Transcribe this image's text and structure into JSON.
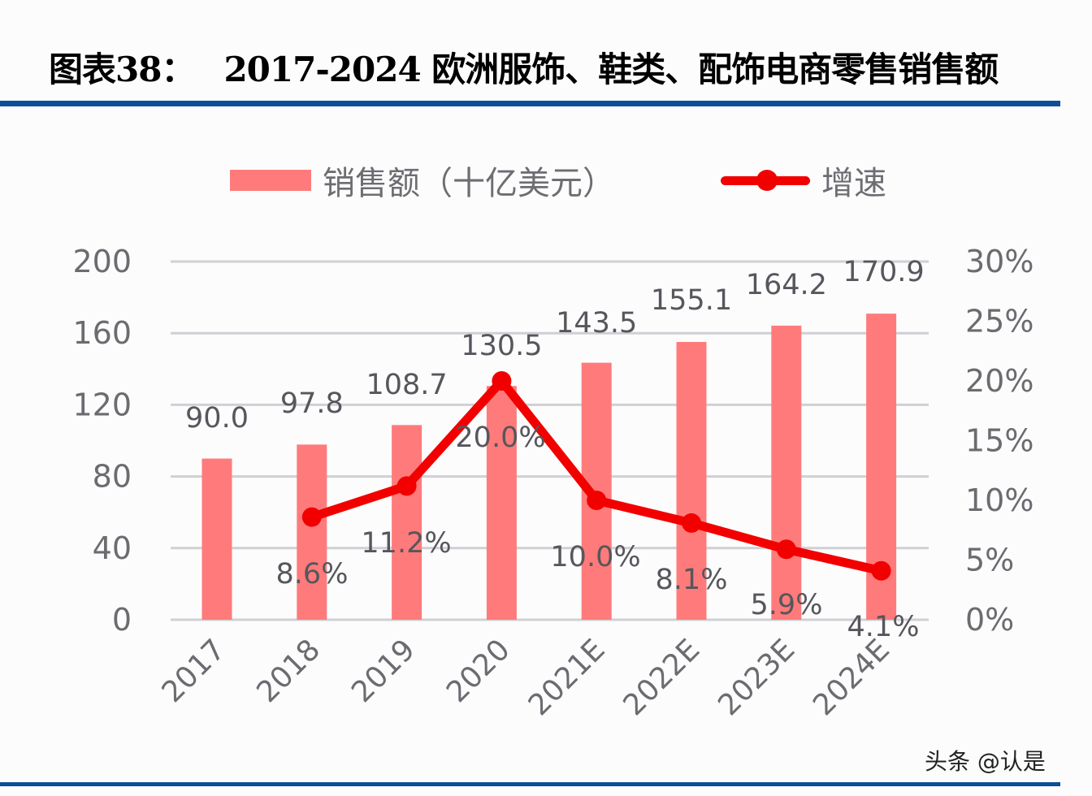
{
  "title": {
    "prefix": "图表38：",
    "text": "2017-2024 欧洲服饰、鞋类、配饰电商零售销售额"
  },
  "watermark": "头条 @认是",
  "legend": {
    "bar_label": "销售额（十亿美元）",
    "line_label": "增速"
  },
  "colors": {
    "bar": "#ff7b7b",
    "line": "#f20000",
    "rule": "#0c4f95",
    "grid": "#d0d0d4",
    "text": "#6b6b70"
  },
  "chart_data": {
    "type": "bar+line",
    "title": "2017-2024 欧洲服饰、鞋类、配饰电商零售销售额",
    "categories": [
      "2017",
      "2018",
      "2019",
      "2020",
      "2021E",
      "2022E",
      "2023E",
      "2024E"
    ],
    "series": [
      {
        "name": "销售额（十亿美元）",
        "type": "bar",
        "axis": "left",
        "values": [
          90.0,
          97.8,
          108.7,
          130.5,
          143.5,
          155.1,
          164.2,
          170.9
        ],
        "labels": [
          "90.0",
          "97.8",
          "108.7",
          "130.5",
          "143.5",
          "155.1",
          "164.2",
          "170.9"
        ]
      },
      {
        "name": "增速",
        "type": "line",
        "axis": "right",
        "values": [
          null,
          8.6,
          11.2,
          20.0,
          10.0,
          8.1,
          5.9,
          4.1
        ],
        "labels": [
          "",
          "8.6%",
          "11.2%",
          "20.0%",
          "10.0%",
          "8.1%",
          "5.9%",
          "4.1%"
        ]
      }
    ],
    "left_axis": {
      "min": 0,
      "max": 200,
      "ticks": [
        "0",
        "40",
        "80",
        "120",
        "160",
        "200"
      ]
    },
    "right_axis": {
      "min": 0,
      "max": 30,
      "ticks": [
        "0%",
        "5%",
        "10%",
        "15%",
        "20%",
        "25%",
        "30%"
      ]
    },
    "grid": true,
    "legend_position": "top",
    "xlabel": "",
    "ylabel": ""
  }
}
